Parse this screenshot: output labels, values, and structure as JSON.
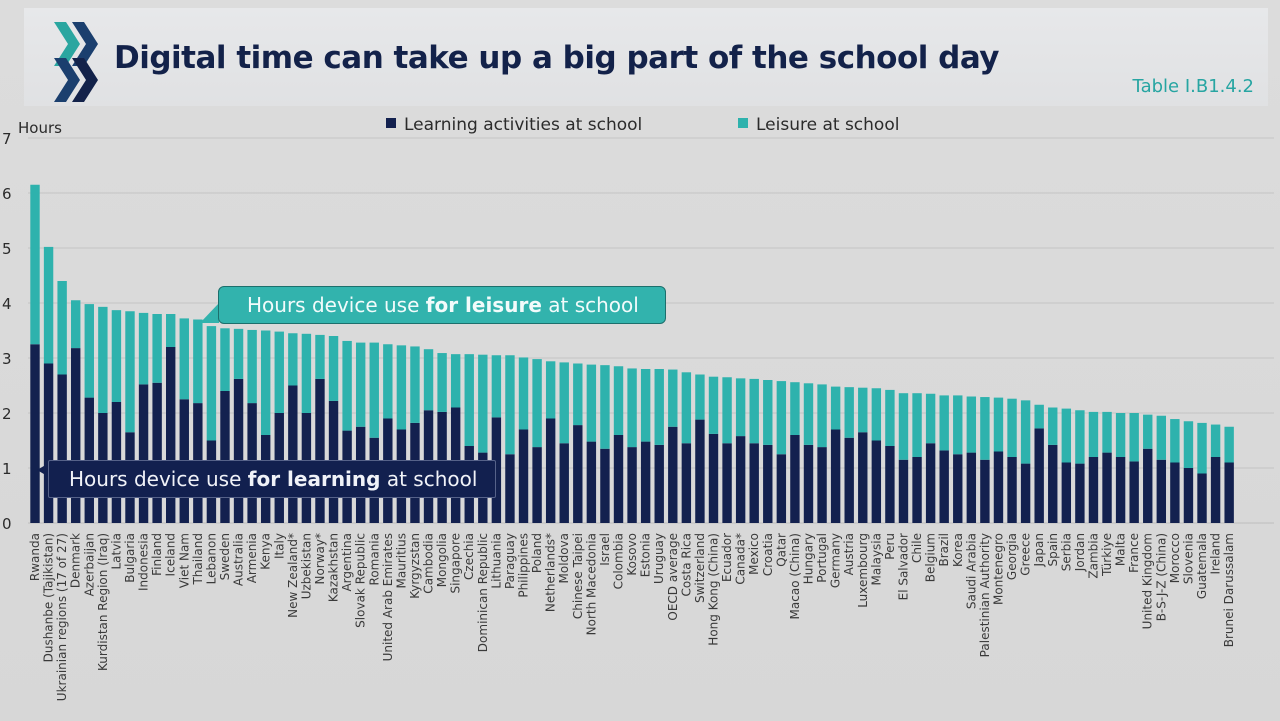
{
  "header": {
    "title": "Digital time can take up a big part of the school day",
    "table_ref": "Table I.B1.4.2"
  },
  "callouts": {
    "leisure": {
      "pre": "Hours device use ",
      "bold": "for leisure",
      "post": " at school"
    },
    "learning": {
      "pre": "Hours device use ",
      "bold": "for learning",
      "post": " at school"
    }
  },
  "colors": {
    "learning": "#13214f",
    "leisure": "#2eb2ad",
    "title": "#13224a",
    "accent": "#27a5a2"
  },
  "chart_data": {
    "type": "bar",
    "stacked": true,
    "ylabel": "Hours",
    "ylim": [
      0,
      7
    ],
    "yticks": [
      0,
      1,
      2,
      3,
      4,
      5,
      6,
      7
    ],
    "grid": true,
    "legend_position": "top-center",
    "categories": [
      "Rwanda",
      "Dushanbe (Tajikistan)",
      "Ukrainian regions (17 of 27)",
      "Denmark",
      "Azerbaijan",
      "Kurdistan Region (Iraq)",
      "Latvia",
      "Bulgaria",
      "Indonesia",
      "Finland",
      "Iceland",
      "Viet Nam",
      "Thailand",
      "Lebanon",
      "Sweden",
      "Australia",
      "Armenia",
      "Kenya",
      "Italy",
      "New Zealand*",
      "Uzbekistan",
      "Norway*",
      "Kazakhstan",
      "Argentina",
      "Slovak Republic",
      "Romania",
      "United Arab Emirates",
      "Mauritius",
      "Kyrgyzstan",
      "Cambodia",
      "Mongolia",
      "Singapore",
      "Czechia",
      "Dominican Republic",
      "Lithuania",
      "Paraguay",
      "Philippines",
      "Poland",
      "Netherlands*",
      "Moldova",
      "Chinese Taipei",
      "North Macedonia",
      "Israel",
      "Colombia",
      "Kosovo",
      "Estonia",
      "Uruguay",
      "OECD average",
      "Costa Rica",
      "Switzerland",
      "Hong Kong (China)",
      "Ecuador",
      "Canada*",
      "Mexico",
      "Croatia",
      "Qatar",
      "Macao (China)",
      "Hungary",
      "Portugal",
      "Germany",
      "Austria",
      "Luxembourg",
      "Malaysia",
      "Peru",
      "El Salvador",
      "Chile",
      "Belgium",
      "Brazil",
      "Korea",
      "Saudi Arabia",
      "Palestinian Authority",
      "Montenegro",
      "Georgia",
      "Greece",
      "Japan",
      "Spain",
      "Serbia",
      "Jordan",
      "Zambia",
      "Türkiye",
      "Malta",
      "France",
      "United Kingdom",
      "B-S-J-Z (China)",
      "Morocco",
      "Slovenia",
      "Guatemala",
      "Ireland",
      "Brunei Darussalam"
    ],
    "series": [
      {
        "name": "Learning activities at school",
        "values": [
          3.25,
          2.9,
          2.7,
          3.18,
          2.28,
          2.0,
          2.2,
          1.65,
          2.52,
          2.55,
          3.2,
          2.25,
          2.18,
          1.5,
          2.4,
          2.62,
          2.18,
          1.6,
          2.0,
          2.5,
          2.0,
          2.62,
          2.22,
          1.68,
          1.75,
          1.55,
          1.9,
          1.7,
          1.82,
          2.05,
          2.02,
          2.1,
          1.4,
          1.28,
          1.92,
          1.25,
          1.7,
          1.38,
          1.9,
          1.45,
          1.78,
          1.48,
          1.35,
          1.6,
          1.38,
          1.48,
          1.42,
          1.75,
          1.45,
          1.88,
          1.62,
          1.45,
          1.58,
          1.45,
          1.42,
          1.25,
          1.6,
          1.42,
          1.38,
          1.7,
          1.55,
          1.65,
          1.5,
          1.4,
          1.15,
          1.2,
          1.45,
          1.32,
          1.25,
          1.28,
          1.15,
          1.3,
          1.2,
          1.08,
          1.72,
          1.42,
          1.1,
          1.08,
          1.2,
          1.28,
          1.2,
          1.12,
          1.35,
          1.15,
          1.1,
          1.0,
          0.9,
          1.2,
          1.1
        ]
      },
      {
        "name": "Leisure at school",
        "values": [
          2.9,
          2.12,
          1.7,
          0.87,
          1.7,
          1.93,
          1.67,
          2.2,
          1.3,
          1.25,
          0.6,
          1.47,
          1.52,
          2.08,
          1.14,
          0.91,
          1.33,
          1.9,
          1.48,
          0.95,
          1.44,
          0.8,
          1.18,
          1.63,
          1.53,
          1.73,
          1.35,
          1.53,
          1.39,
          1.11,
          1.07,
          0.97,
          1.67,
          1.78,
          1.13,
          1.8,
          1.31,
          1.6,
          1.04,
          1.47,
          1.12,
          1.4,
          1.52,
          1.25,
          1.43,
          1.32,
          1.38,
          1.04,
          1.29,
          0.82,
          1.04,
          1.2,
          1.05,
          1.17,
          1.18,
          1.33,
          0.96,
          1.12,
          1.14,
          0.78,
          0.92,
          0.81,
          0.95,
          1.02,
          1.21,
          1.16,
          0.9,
          1.0,
          1.07,
          1.02,
          1.14,
          0.98,
          1.06,
          1.15,
          0.43,
          0.68,
          0.98,
          0.97,
          0.82,
          0.74,
          0.8,
          0.88,
          0.62,
          0.8,
          0.79,
          0.85,
          0.92,
          0.59,
          0.65
        ]
      }
    ]
  }
}
